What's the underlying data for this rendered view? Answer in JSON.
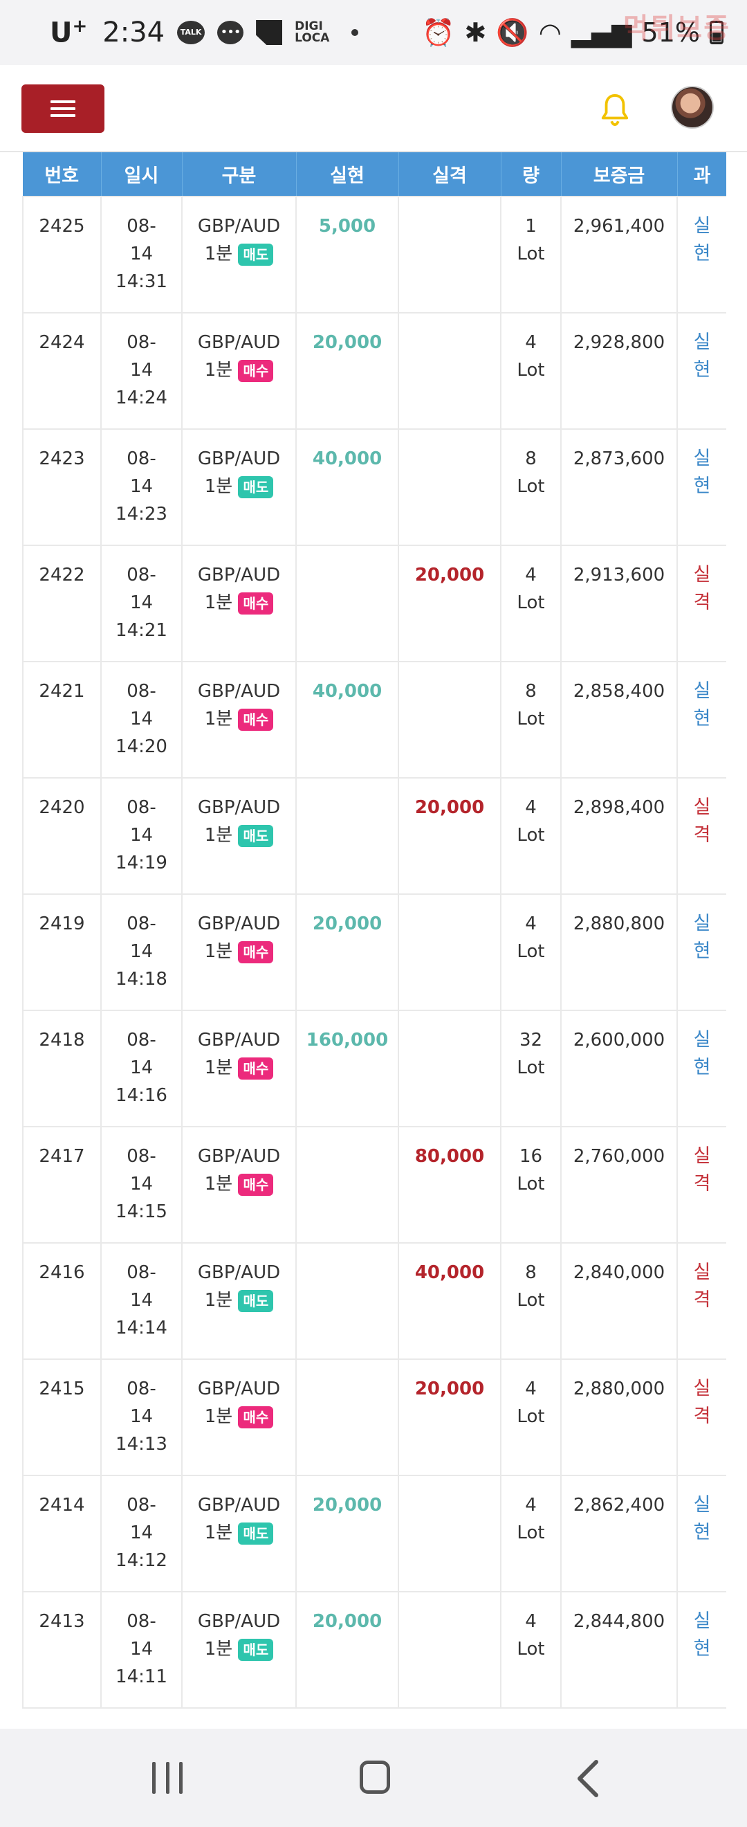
{
  "status_bar": {
    "carrier": "U",
    "carrier_sup": "+",
    "time": "2:34",
    "talk_label": "TALK",
    "digi_label_1": "DIGI",
    "digi_label_2": "LOCA",
    "battery": "51%",
    "watermark": "먹튀보증"
  },
  "header": {
    "menu_icon": "hamburger-icon",
    "notification_icon": "bell-icon",
    "avatar": "user-avatar"
  },
  "table": {
    "columns": [
      "번호",
      "일시",
      "구분",
      "실현",
      "실격",
      "량",
      "보증금",
      "과"
    ],
    "rows": [
      {
        "no": "2425",
        "date": "08-",
        "day": "14",
        "time": "14:31",
        "pair": "GBP/AUD",
        "tf": "1분",
        "side": "매도",
        "side_type": "sell",
        "profit": "5,000",
        "loss": "",
        "qty": "1",
        "unit": "Lot",
        "deposit": "2,961,400",
        "result1": "실",
        "result2": "현",
        "result_type": "win"
      },
      {
        "no": "2424",
        "date": "08-",
        "day": "14",
        "time": "14:24",
        "pair": "GBP/AUD",
        "tf": "1분",
        "side": "매수",
        "side_type": "buy",
        "profit": "20,000",
        "loss": "",
        "qty": "4",
        "unit": "Lot",
        "deposit": "2,928,800",
        "result1": "실",
        "result2": "현",
        "result_type": "win"
      },
      {
        "no": "2423",
        "date": "08-",
        "day": "14",
        "time": "14:23",
        "pair": "GBP/AUD",
        "tf": "1분",
        "side": "매도",
        "side_type": "sell",
        "profit": "40,000",
        "loss": "",
        "qty": "8",
        "unit": "Lot",
        "deposit": "2,873,600",
        "result1": "실",
        "result2": "현",
        "result_type": "win"
      },
      {
        "no": "2422",
        "date": "08-",
        "day": "14",
        "time": "14:21",
        "pair": "GBP/AUD",
        "tf": "1분",
        "side": "매수",
        "side_type": "buy",
        "profit": "",
        "loss": "20,000",
        "qty": "4",
        "unit": "Lot",
        "deposit": "2,913,600",
        "result1": "실",
        "result2": "격",
        "result_type": "lose"
      },
      {
        "no": "2421",
        "date": "08-",
        "day": "14",
        "time": "14:20",
        "pair": "GBP/AUD",
        "tf": "1분",
        "side": "매수",
        "side_type": "buy",
        "profit": "40,000",
        "loss": "",
        "qty": "8",
        "unit": "Lot",
        "deposit": "2,858,400",
        "result1": "실",
        "result2": "현",
        "result_type": "win"
      },
      {
        "no": "2420",
        "date": "08-",
        "day": "14",
        "time": "14:19",
        "pair": "GBP/AUD",
        "tf": "1분",
        "side": "매도",
        "side_type": "sell",
        "profit": "",
        "loss": "20,000",
        "qty": "4",
        "unit": "Lot",
        "deposit": "2,898,400",
        "result1": "실",
        "result2": "격",
        "result_type": "lose"
      },
      {
        "no": "2419",
        "date": "08-",
        "day": "14",
        "time": "14:18",
        "pair": "GBP/AUD",
        "tf": "1분",
        "side": "매수",
        "side_type": "buy",
        "profit": "20,000",
        "loss": "",
        "qty": "4",
        "unit": "Lot",
        "deposit": "2,880,800",
        "result1": "실",
        "result2": "현",
        "result_type": "win"
      },
      {
        "no": "2418",
        "date": "08-",
        "day": "14",
        "time": "14:16",
        "pair": "GBP/AUD",
        "tf": "1분",
        "side": "매수",
        "side_type": "buy",
        "profit": "160,000",
        "loss": "",
        "qty": "32",
        "unit": "Lot",
        "deposit": "2,600,000",
        "result1": "실",
        "result2": "현",
        "result_type": "win"
      },
      {
        "no": "2417",
        "date": "08-",
        "day": "14",
        "time": "14:15",
        "pair": "GBP/AUD",
        "tf": "1분",
        "side": "매수",
        "side_type": "buy",
        "profit": "",
        "loss": "80,000",
        "qty": "16",
        "unit": "Lot",
        "deposit": "2,760,000",
        "result1": "실",
        "result2": "격",
        "result_type": "lose"
      },
      {
        "no": "2416",
        "date": "08-",
        "day": "14",
        "time": "14:14",
        "pair": "GBP/AUD",
        "tf": "1분",
        "side": "매도",
        "side_type": "sell",
        "profit": "",
        "loss": "40,000",
        "qty": "8",
        "unit": "Lot",
        "deposit": "2,840,000",
        "result1": "실",
        "result2": "격",
        "result_type": "lose"
      },
      {
        "no": "2415",
        "date": "08-",
        "day": "14",
        "time": "14:13",
        "pair": "GBP/AUD",
        "tf": "1분",
        "side": "매수",
        "side_type": "buy",
        "profit": "",
        "loss": "20,000",
        "qty": "4",
        "unit": "Lot",
        "deposit": "2,880,000",
        "result1": "실",
        "result2": "격",
        "result_type": "lose"
      },
      {
        "no": "2414",
        "date": "08-",
        "day": "14",
        "time": "14:12",
        "pair": "GBP/AUD",
        "tf": "1분",
        "side": "매도",
        "side_type": "sell",
        "profit": "20,000",
        "loss": "",
        "qty": "4",
        "unit": "Lot",
        "deposit": "2,862,400",
        "result1": "실",
        "result2": "현",
        "result_type": "win"
      },
      {
        "no": "2413",
        "date": "08-",
        "day": "14",
        "time": "14:11",
        "pair": "GBP/AUD",
        "tf": "1분",
        "side": "매도",
        "side_type": "sell",
        "profit": "20,000",
        "loss": "",
        "qty": "4",
        "unit": "Lot",
        "deposit": "2,844,800",
        "result1": "실",
        "result2": "현",
        "result_type": "win"
      }
    ]
  },
  "colors": {
    "header_bg": "#4b96d6",
    "menu_button": "#a81f27",
    "profit": "#5cb8ac",
    "loss": "#b4242b",
    "sell_badge": "#2ec5ad",
    "buy_badge": "#ec2a7c",
    "bell": "#f2c200"
  },
  "nav": {
    "recents_icon": "recents-icon",
    "home_icon": "home-icon",
    "back_icon": "back-icon"
  }
}
